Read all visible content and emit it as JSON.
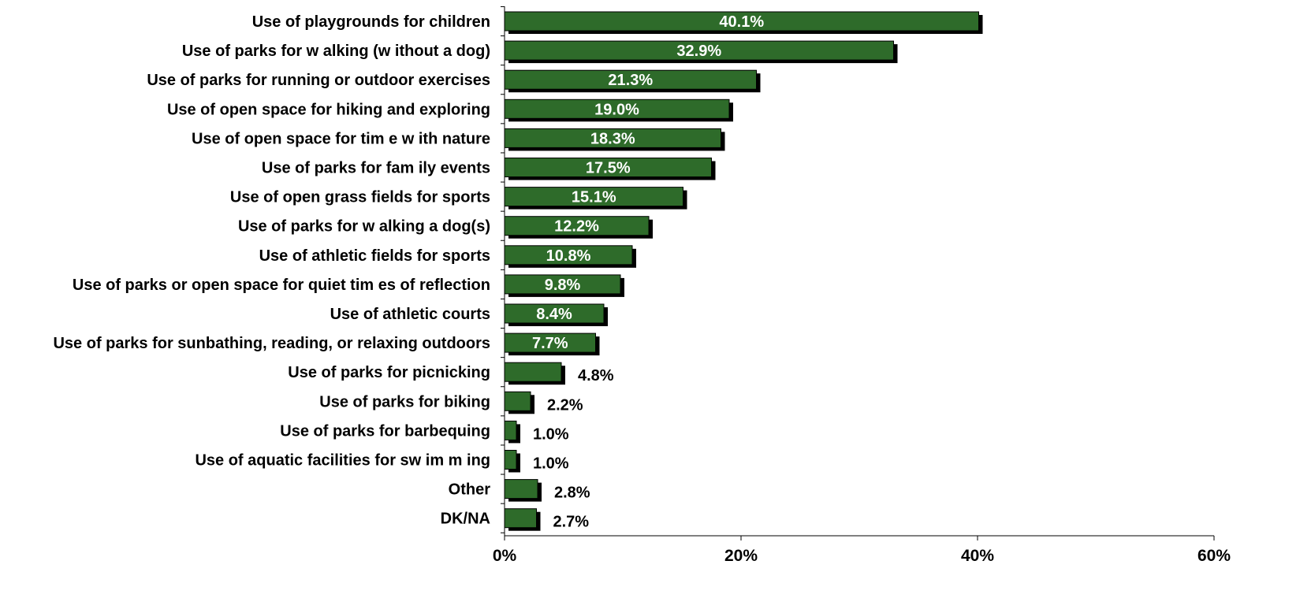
{
  "chart_data": {
    "type": "bar",
    "orientation": "horizontal",
    "title": "",
    "xlabel": "",
    "ylabel": "",
    "categories": [
      "Use of playgrounds for children",
      "Use of parks for w alking (w ithout a dog)",
      "Use of parks for running or outdoor exercises",
      "Use of open space for hiking and exploring",
      "Use of open space for tim e w ith nature",
      "Use of parks for fam ily events",
      "Use of open grass fields for sports",
      "Use of parks for w alking a dog(s)",
      "Use of athletic fields for sports",
      "Use of parks or open space for quiet tim es of reflection",
      "Use of athletic courts",
      "Use of parks for sunbathing, reading, or relaxing outdoors",
      "Use of parks for picnicking",
      "Use of parks for biking",
      "Use of parks for barbequing",
      "Use of aquatic facilities for sw im m ing",
      "Other",
      "DK/NA"
    ],
    "values": [
      40.1,
      32.9,
      21.3,
      19.0,
      18.3,
      17.5,
      15.1,
      12.2,
      10.8,
      9.8,
      8.4,
      7.7,
      4.8,
      2.2,
      1.0,
      1.0,
      2.8,
      2.7
    ],
    "value_labels": [
      "40.1%",
      "32.9%",
      "21.3%",
      "19.0%",
      "18.3%",
      "17.5%",
      "15.1%",
      "12.2%",
      "10.8%",
      "9.8%",
      "8.4%",
      "7.7%",
      "4.8%",
      "2.2%",
      "1.0%",
      "1.0%",
      "2.8%",
      "2.7%"
    ],
    "xlim": [
      0,
      60
    ],
    "xticks": [
      0,
      20,
      40,
      60
    ],
    "xtick_labels": [
      "0%",
      "20%",
      "40%",
      "60%"
    ],
    "grid": false,
    "legend": "none",
    "colors": {
      "bar": "#2e6b2a",
      "shadow": "#000000"
    }
  }
}
